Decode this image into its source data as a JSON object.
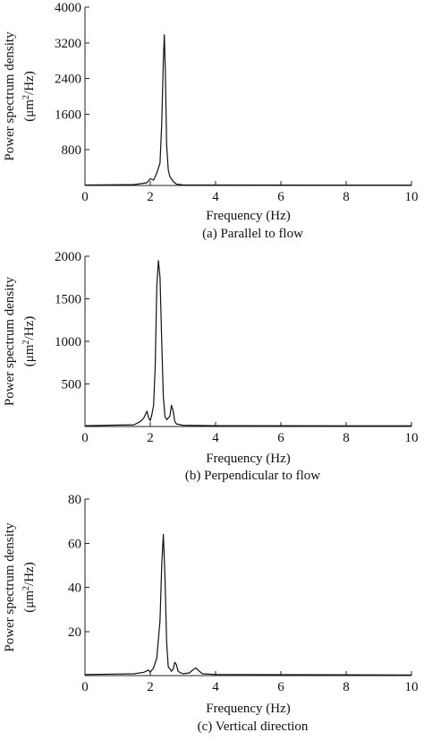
{
  "chart_data": [
    {
      "type": "line",
      "caption": "(a) Parallel to flow",
      "xlabel": "Frequency (Hz)",
      "ylabel_line1": "Power spectrum density",
      "ylabel_line2_prefix": "(μm",
      "ylabel_line2_sup": "2",
      "ylabel_line2_suffix": "/Hz)",
      "xlim": [
        0,
        10
      ],
      "ylim": [
        0,
        4000
      ],
      "xticks": [
        0,
        2,
        4,
        6,
        8,
        10
      ],
      "xtick_labels": [
        "0",
        "2",
        "4",
        "6",
        "8",
        "10"
      ],
      "yticks": [
        800,
        1600,
        2400,
        3200,
        4000
      ],
      "ytick_labels": [
        "800",
        "1600",
        "2400",
        "3200",
        "4000"
      ],
      "grid": false,
      "series": [
        {
          "x": [
            0,
            1.5,
            1.9,
            2.0,
            2.1,
            2.2,
            2.3,
            2.35,
            2.4,
            2.43,
            2.46,
            2.5,
            2.55,
            2.6,
            2.7,
            2.8,
            3.0,
            3.5,
            10
          ],
          "y": [
            10,
            20,
            60,
            150,
            120,
            280,
            500,
            1400,
            2800,
            3380,
            2600,
            900,
            350,
            200,
            90,
            30,
            15,
            10,
            8
          ]
        }
      ]
    },
    {
      "type": "line",
      "caption": "(b) Perpendicular to flow",
      "xlabel": "Frequency (Hz)",
      "ylabel_line1": "Power spectrum density",
      "ylabel_line2_prefix": "(μm",
      "ylabel_line2_sup": "2",
      "ylabel_line2_suffix": "/Hz)",
      "xlim": [
        0,
        10
      ],
      "ylim": [
        0,
        2000
      ],
      "xticks": [
        0,
        2,
        4,
        6,
        8,
        10
      ],
      "xtick_labels": [
        "0",
        "2",
        "4",
        "6",
        "8",
        "10"
      ],
      "yticks": [
        500,
        1000,
        1500,
        2000
      ],
      "ytick_labels": [
        "500",
        "1000",
        "1500",
        "2000"
      ],
      "grid": false,
      "series": [
        {
          "x": [
            0,
            1.5,
            1.7,
            1.8,
            1.9,
            1.95,
            2.0,
            2.05,
            2.1,
            2.15,
            2.2,
            2.25,
            2.3,
            2.35,
            2.4,
            2.45,
            2.5,
            2.6,
            2.65,
            2.7,
            2.75,
            2.8,
            3.0,
            4.0,
            10
          ],
          "y": [
            10,
            20,
            60,
            100,
            180,
            100,
            70,
            140,
            250,
            700,
            1650,
            1950,
            1750,
            1000,
            350,
            120,
            80,
            120,
            250,
            180,
            60,
            30,
            15,
            10,
            8
          ]
        }
      ]
    },
    {
      "type": "line",
      "caption": "(c) Vertical direction",
      "xlabel": "Frequency (Hz)",
      "ylabel_line1": "Power spectrum density",
      "ylabel_line2_prefix": "(μm",
      "ylabel_line2_sup": "2",
      "ylabel_line2_suffix": "/Hz)",
      "xlim": [
        0,
        10
      ],
      "ylim": [
        0,
        80
      ],
      "xticks": [
        0,
        2,
        4,
        6,
        8,
        10
      ],
      "xtick_labels": [
        "0",
        "2",
        "4",
        "6",
        "8",
        "10"
      ],
      "yticks": [
        20,
        40,
        60,
        80
      ],
      "ytick_labels": [
        "20",
        "40",
        "60",
        "80"
      ],
      "grid": false,
      "series": [
        {
          "x": [
            0,
            1.5,
            1.8,
            1.95,
            2.0,
            2.1,
            2.2,
            2.3,
            2.35,
            2.4,
            2.45,
            2.5,
            2.55,
            2.65,
            2.7,
            2.75,
            2.8,
            2.85,
            2.9,
            3.0,
            3.2,
            3.3,
            3.4,
            3.5,
            3.6,
            4.0,
            10
          ],
          "y": [
            0.5,
            0.8,
            1.5,
            2.5,
            1.5,
            3.5,
            8,
            25,
            50,
            64,
            45,
            15,
            4,
            2,
            3,
            6,
            5,
            2,
            1.5,
            0.8,
            1.2,
            2.5,
            3.5,
            2,
            0.8,
            0.5,
            0.3
          ]
        }
      ]
    }
  ]
}
